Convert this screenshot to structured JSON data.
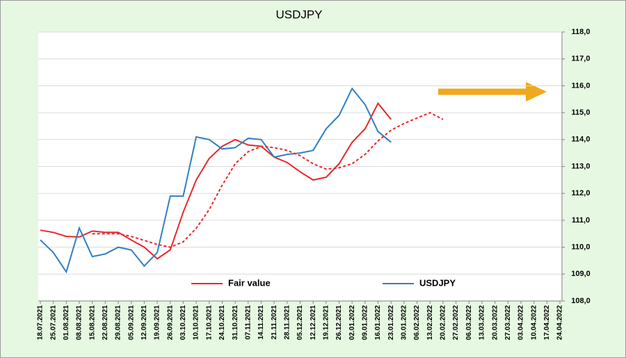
{
  "chart_data": {
    "type": "line",
    "title": "USDJPY",
    "categories": [
      "18.07.2021",
      "25.07.2021",
      "01.08.2021",
      "08.08.2021",
      "15.08.2021",
      "22.08.2021",
      "29.08.2021",
      "05.09.2021",
      "12.09.2021",
      "19.09.2021",
      "26.09.2021",
      "03.10.2021",
      "10.10.2021",
      "17.10.2021",
      "24.10.2021",
      "31.10.2021",
      "07.11.2021",
      "14.11.2021",
      "21.11.2021",
      "28.11.2021",
      "05.12.2021",
      "12.12.2021",
      "19.12.2021",
      "26.12.2021",
      "02.01.2022",
      "09.01.2022",
      "16.01.2022",
      "23.01.2022",
      "30.01.2022",
      "06.02.2022",
      "13.02.2022",
      "20.02.2022",
      "27.02.2022",
      "06.03.2022",
      "13.03.2022",
      "20.03.2022",
      "27.03.2022",
      "03.04.2022",
      "10.04.2022",
      "17.04.2022",
      "24.04.2022"
    ],
    "series": [
      {
        "name": "Fair value",
        "color": "#e8262a",
        "values": [
          110.63,
          110.55,
          110.4,
          110.38,
          110.6,
          110.55,
          110.55,
          110.27,
          110.0,
          109.57,
          109.9,
          111.3,
          112.5,
          113.3,
          113.75,
          114.0,
          113.8,
          113.75,
          113.35,
          113.15,
          112.8,
          112.5,
          112.6,
          113.1,
          113.9,
          114.4,
          115.35,
          114.75,
          null,
          null,
          null,
          null,
          null,
          null,
          null,
          null,
          null,
          null,
          null,
          null,
          null
        ]
      },
      {
        "name": "USDJPY",
        "color": "#2e7ec4",
        "values": [
          110.27,
          109.8,
          109.08,
          110.71,
          109.65,
          109.75,
          110.0,
          109.9,
          109.3,
          109.8,
          111.9,
          111.9,
          114.1,
          114.0,
          113.65,
          113.7,
          114.05,
          114.0,
          113.35,
          113.45,
          113.5,
          113.6,
          114.4,
          114.9,
          115.9,
          115.3,
          114.3,
          113.9,
          null,
          null,
          null,
          null,
          null,
          null,
          null,
          null,
          null,
          null,
          null,
          null,
          null
        ]
      },
      {
        "color": "#e8262a",
        "dashed": true,
        "values": [
          null,
          null,
          null,
          null,
          110.5,
          110.5,
          110.5,
          110.4,
          110.25,
          110.1,
          110.0,
          110.2,
          110.7,
          111.4,
          112.3,
          113.1,
          113.55,
          113.75,
          113.7,
          113.6,
          113.4,
          113.1,
          112.9,
          112.95,
          113.1,
          113.45,
          113.95,
          114.35,
          114.6,
          114.8,
          115.0,
          114.75,
          null,
          null,
          null,
          null,
          null,
          null,
          null,
          null,
          null
        ]
      }
    ],
    "ylim": [
      108,
      118
    ],
    "yticks": [
      {
        "value": 108,
        "label": "108,0"
      },
      {
        "value": 109,
        "label": "109,0"
      },
      {
        "value": 110,
        "label": "110,0"
      },
      {
        "value": 111,
        "label": "111,0"
      },
      {
        "value": 112,
        "label": "112,0"
      },
      {
        "value": 113,
        "label": "113,0"
      },
      {
        "value": 114,
        "label": "114,0"
      },
      {
        "value": 115,
        "label": "115,0"
      },
      {
        "value": 116,
        "label": "116,0"
      },
      {
        "value": 117,
        "label": "117,0"
      },
      {
        "value": 118,
        "label": "118,0"
      }
    ],
    "grid": true
  }
}
